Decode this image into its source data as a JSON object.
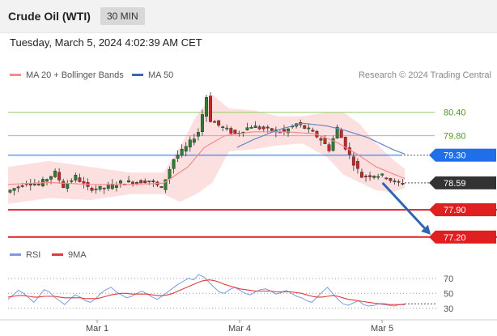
{
  "header": {
    "title": "Crude Oil (WTI)",
    "timeframe": "30 MIN"
  },
  "timestamp": "Tuesday, March 5, 2024 4:02:39 AM CET",
  "legend": {
    "items": [
      {
        "label": "MA 20 + Bollinger Bands",
        "color": "#f28b8b"
      },
      {
        "label": "MA 50",
        "color": "#3f65b5"
      }
    ],
    "credit": "Research © 2024 Trading Central"
  },
  "rsi_legend": {
    "items": [
      {
        "label": "RSI",
        "color": "#7a9be0"
      },
      {
        "label": "9MA",
        "color": "#e23b3b"
      }
    ]
  },
  "colors": {
    "up": "#2e7d32",
    "down": "#c62828",
    "band": "#fbd5d5",
    "ma20": "#f28b8b",
    "ma50": "#6b86c5",
    "resistance_green": "#9ccc65",
    "pivot_blue": "#1e6fe8",
    "support_red": "#e02020",
    "current_dark": "#333333",
    "arrow": "#2f66b3"
  },
  "chart_data": [
    {
      "type": "line",
      "title": "Crude Oil (WTI)",
      "timeframe": "30 MIN",
      "x_ticks": [
        "Mar 1",
        "Mar 4",
        "Mar 5"
      ],
      "levels": [
        {
          "value": 80.4,
          "label": "80.40",
          "kind": "resistance",
          "style": "line"
        },
        {
          "value": 79.8,
          "label": "79.80",
          "kind": "resistance",
          "style": "line"
        },
        {
          "value": 79.3,
          "label": "79.30",
          "kind": "pivot",
          "style": "badge"
        },
        {
          "value": 78.59,
          "label": "78.59",
          "kind": "current",
          "style": "badge"
        },
        {
          "value": 77.9,
          "label": "77.90",
          "kind": "support",
          "style": "badge"
        },
        {
          "value": 77.2,
          "label": "77.20",
          "kind": "support",
          "style": "badge"
        }
      ],
      "ylim": [
        77.05,
        81.1
      ],
      "xlim": [
        0,
        97
      ],
      "price_anchors": [
        [
          0,
          78.35
        ],
        [
          5,
          78.6
        ],
        [
          8,
          78.55
        ],
        [
          12,
          78.85
        ],
        [
          14,
          78.5
        ],
        [
          17,
          78.75
        ],
        [
          20,
          78.45
        ],
        [
          24,
          78.45
        ],
        [
          28,
          78.6
        ],
        [
          32,
          78.62
        ],
        [
          35,
          78.65
        ],
        [
          38,
          78.45
        ],
        [
          41,
          79.2
        ],
        [
          44,
          79.5
        ],
        [
          47,
          79.9
        ],
        [
          49,
          80.8
        ],
        [
          50,
          80.2
        ],
        [
          53,
          80.0
        ],
        [
          56,
          79.85
        ],
        [
          60,
          80.05
        ],
        [
          64,
          79.95
        ],
        [
          68,
          79.9
        ],
        [
          71,
          80.1
        ],
        [
          74,
          79.95
        ],
        [
          77,
          79.7
        ],
        [
          79,
          79.45
        ],
        [
          81,
          80.0
        ],
        [
          83,
          79.5
        ],
        [
          85,
          79.1
        ],
        [
          87,
          78.75
        ],
        [
          90,
          78.8
        ],
        [
          93,
          78.75
        ],
        [
          95,
          78.58
        ],
        [
          97,
          78.59
        ]
      ],
      "ma20_anchors": [
        [
          0,
          78.55
        ],
        [
          10,
          78.6
        ],
        [
          20,
          78.55
        ],
        [
          30,
          78.55
        ],
        [
          38,
          78.58
        ],
        [
          44,
          79.0
        ],
        [
          48,
          79.5
        ],
        [
          53,
          79.8
        ],
        [
          60,
          79.9
        ],
        [
          68,
          79.9
        ],
        [
          75,
          79.85
        ],
        [
          80,
          79.65
        ],
        [
          85,
          79.35
        ],
        [
          90,
          79.0
        ],
        [
          97,
          78.7
        ]
      ],
      "bollinger_anchors": [
        [
          0,
          79.0,
          78.05
        ],
        [
          10,
          79.15,
          78.2
        ],
        [
          20,
          79.0,
          78.15
        ],
        [
          30,
          78.85,
          78.3
        ],
        [
          38,
          78.85,
          78.3
        ],
        [
          42,
          79.5,
          78.1
        ],
        [
          46,
          80.3,
          78.3
        ],
        [
          50,
          80.85,
          78.6
        ],
        [
          54,
          80.5,
          79.4
        ],
        [
          60,
          80.45,
          79.45
        ],
        [
          66,
          80.3,
          79.55
        ],
        [
          72,
          80.3,
          79.6
        ],
        [
          78,
          80.4,
          79.25
        ],
        [
          82,
          80.4,
          78.8
        ],
        [
          86,
          80.1,
          78.6
        ],
        [
          90,
          79.6,
          78.4
        ],
        [
          94,
          79.2,
          78.35
        ],
        [
          97,
          78.95,
          78.45
        ]
      ],
      "ma50_anchors": [
        [
          56,
          79.5
        ],
        [
          60,
          79.7
        ],
        [
          66,
          79.95
        ],
        [
          72,
          80.12
        ],
        [
          78,
          80.05
        ],
        [
          82,
          79.95
        ],
        [
          88,
          79.75
        ],
        [
          94,
          79.45
        ],
        [
          97,
          79.33
        ]
      ],
      "forecast_arrow": {
        "from": [
          90,
          78.59
        ],
        "to": [
          97,
          77.22
        ]
      }
    },
    {
      "type": "line",
      "title": "RSI",
      "ylim": [
        20,
        85
      ],
      "yticks": [
        30,
        50,
        70
      ],
      "series": [
        {
          "name": "RSI",
          "values": [
            42,
            48,
            54,
            50,
            44,
            38,
            46,
            55,
            52,
            45,
            40,
            35,
            42,
            48,
            45,
            40,
            38,
            43,
            50,
            55,
            58,
            52,
            48,
            44,
            46,
            50,
            53,
            49,
            45,
            42,
            47,
            52,
            57,
            62,
            66,
            70,
            68,
            75,
            72,
            65,
            58,
            52,
            50,
            55,
            58,
            54,
            50,
            48,
            52,
            55,
            56,
            53,
            49,
            51,
            54,
            50,
            46,
            44,
            40,
            38,
            45,
            52,
            58,
            50,
            42,
            36,
            34,
            37,
            40,
            35,
            33,
            34,
            36,
            35,
            34,
            33,
            35,
            36
          ]
        },
        {
          "name": "9MA",
          "values": [
            45,
            46,
            47,
            47,
            46,
            45,
            45,
            46,
            46,
            46,
            45,
            44,
            44,
            44,
            44,
            43,
            43,
            43,
            44,
            46,
            48,
            49,
            50,
            50,
            49,
            49,
            49,
            49,
            48,
            47,
            47,
            48,
            50,
            53,
            56,
            59,
            62,
            65,
            67,
            68,
            67,
            65,
            62,
            60,
            58,
            56,
            55,
            54,
            53,
            53,
            53,
            53,
            52,
            52,
            52,
            52,
            51,
            50,
            48,
            46,
            45,
            45,
            46,
            47,
            46,
            44,
            42,
            41,
            40,
            39,
            38,
            37,
            36,
            36,
            35,
            35,
            35,
            35
          ]
        }
      ]
    }
  ]
}
